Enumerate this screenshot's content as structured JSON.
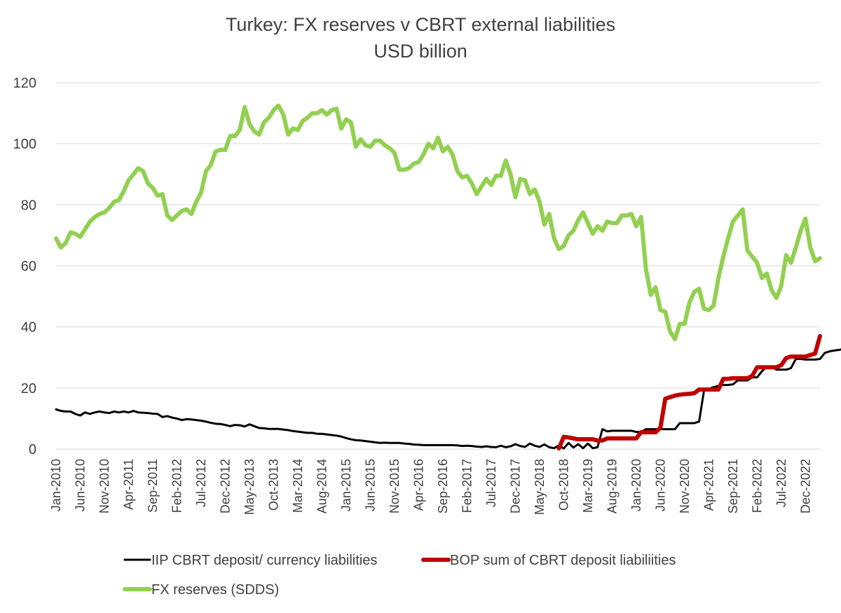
{
  "chart_data": {
    "type": "line",
    "title": "Turkey: FX reserves v CBRT external liabilities",
    "subtitle": "USD billion",
    "ylim": [
      0,
      120
    ],
    "yticks": [
      0,
      20,
      40,
      60,
      80,
      100,
      120
    ],
    "x_start": "Jan-2010",
    "x_count": 159,
    "xtick_labels": [
      "Jan-2010",
      "Jun-2010",
      "Nov-2010",
      "Apr-2011",
      "Sep-2011",
      "Feb-2012",
      "Jul-2012",
      "Dec-2012",
      "May-2013",
      "Oct-2013",
      "Mar-2014",
      "Aug-2014",
      "Jan-2015",
      "Jun-2015",
      "Nov-2015",
      "Apr-2016",
      "Sep-2016",
      "Feb-2017",
      "Jul-2017",
      "Dec-2017",
      "May-2018",
      "Oct-2018",
      "Mar-2019",
      "Aug-2019",
      "Jan-2020",
      "Jun-2020",
      "Nov-2020",
      "Apr-2021",
      "Sep-2021",
      "Feb-2022",
      "Jul-2022",
      "Dec-2022"
    ],
    "grid": true,
    "legend_position": "bottom",
    "series": [
      {
        "name": "IIP CBRT deposit/ currency liabilities",
        "color": "#000000",
        "start_index": 0,
        "values": [
          13.0,
          12.5,
          12.3,
          12.3,
          11.5,
          11.0,
          12.0,
          11.5,
          12.0,
          12.3,
          12.0,
          11.8,
          12.3,
          12.0,
          12.3,
          12.0,
          12.5,
          12.0,
          11.9,
          11.8,
          11.6,
          11.5,
          10.5,
          10.8,
          10.3,
          10.0,
          9.5,
          9.8,
          9.7,
          9.5,
          9.3,
          9.0,
          8.6,
          8.3,
          8.2,
          7.9,
          7.5,
          7.9,
          7.8,
          7.4,
          8.1,
          7.5,
          6.9,
          6.8,
          6.6,
          6.6,
          6.6,
          6.4,
          6.2,
          5.9,
          5.7,
          5.5,
          5.3,
          5.3,
          5.0,
          5.0,
          4.8,
          4.6,
          4.4,
          4.1,
          3.6,
          3.2,
          2.9,
          2.8,
          2.6,
          2.4,
          2.2,
          2.0,
          2.1,
          2.0,
          2.0,
          2.0,
          1.8,
          1.7,
          1.5,
          1.4,
          1.3,
          1.3,
          1.3,
          1.3,
          1.3,
          1.3,
          1.3,
          1.2,
          1.0,
          1.1,
          1.0,
          0.8,
          0.7,
          0.9,
          0.7,
          0.6,
          1.1,
          0.6,
          0.9,
          1.6,
          1.0,
          0.7,
          1.8,
          1.1,
          0.7,
          1.5,
          0.6,
          0.3,
          1.2,
          0.2,
          2.0,
          0.5,
          1.6,
          0.3,
          1.8,
          0.3,
          0.6,
          6.5,
          5.8,
          6.0,
          6.0,
          6.0,
          6.0,
          6.0,
          5.6,
          5.6,
          6.5,
          6.5,
          6.5,
          6.5,
          6.5,
          6.5,
          6.5,
          8.5,
          8.5,
          8.5,
          8.5,
          9.0,
          19.0,
          19.7,
          20.3,
          20.7,
          21.0,
          21.0,
          21.2,
          22.5,
          22.5,
          22.5,
          23.5,
          23.5,
          25.5,
          27.0,
          27.0,
          26.0,
          26.0,
          26.0,
          26.5,
          29.5,
          29.5,
          29.3,
          29.3,
          29.3,
          29.5,
          31.5,
          32.0,
          32.3,
          32.5,
          32.8,
          33.5,
          33.8
        ]
      },
      {
        "name": "BOP sum of CBRT deposit liabiliities",
        "color": "#c00000",
        "start_index": 104,
        "values": [
          0.2,
          4.0,
          3.8,
          3.5,
          3.2,
          3.2,
          3.2,
          3.2,
          2.8,
          2.8,
          3.5,
          3.5,
          3.5,
          3.5,
          3.5,
          3.5,
          3.5,
          5.5,
          5.5,
          5.5,
          5.5,
          7.0,
          16.5,
          17.0,
          17.5,
          17.8,
          18.0,
          18.1,
          18.3,
          19.5,
          19.5,
          19.5,
          19.5,
          19.5,
          23.0,
          23.0,
          23.2,
          23.2,
          23.2,
          23.2,
          24.0,
          26.8,
          26.8,
          26.8,
          26.8,
          26.8,
          27.5,
          29.8,
          30.3,
          30.3,
          30.3,
          30.3,
          30.8,
          31.3,
          37.0
        ]
      },
      {
        "name": "FX reserves (SDDS)",
        "color": "#92d050",
        "start_index": 0,
        "values": [
          69.0,
          66.0,
          67.5,
          71.0,
          70.5,
          69.5,
          72.0,
          74.5,
          76.0,
          77.0,
          77.5,
          79.0,
          81.0,
          81.5,
          84.5,
          88.0,
          90.0,
          92.0,
          91.0,
          87.0,
          85.5,
          83.0,
          83.5,
          76.5,
          75.0,
          76.5,
          78.0,
          78.5,
          77.0,
          81.0,
          84.0,
          91.0,
          93.0,
          97.5,
          98.0,
          98.0,
          102.5,
          102.5,
          104.5,
          112.0,
          106.5,
          104.0,
          103.0,
          107.0,
          108.5,
          111.0,
          112.5,
          109.5,
          103.0,
          105.0,
          104.5,
          107.5,
          108.5,
          110.0,
          110.0,
          111.0,
          109.5,
          111.0,
          111.5,
          105.0,
          108.0,
          107.0,
          99.0,
          101.5,
          99.5,
          99.0,
          101.0,
          101.0,
          99.5,
          98.5,
          97.0,
          91.5,
          91.5,
          92.0,
          93.5,
          94.0,
          96.5,
          100.0,
          98.5,
          102.0,
          97.5,
          99.0,
          96.5,
          91.0,
          89.0,
          89.5,
          87.0,
          83.5,
          86.0,
          88.5,
          86.5,
          89.5,
          89.5,
          94.5,
          90.0,
          82.5,
          88.5,
          88.0,
          83.5,
          85.0,
          81.0,
          73.5,
          77.0,
          69.0,
          65.5,
          66.5,
          70.0,
          71.5,
          75.0,
          77.5,
          74.0,
          70.5,
          73.0,
          71.5,
          74.5,
          74.0,
          74.0,
          76.5,
          76.5,
          77.0,
          73.0,
          76.0,
          59.0,
          50.5,
          53.0,
          45.5,
          45.0,
          38.5,
          36.0,
          41.0,
          41.0,
          48.0,
          51.5,
          52.5,
          46.0,
          45.5,
          47.0,
          56.0,
          63.0,
          69.0,
          74.5,
          76.5,
          78.5,
          65.0,
          63.0,
          61.0,
          56.0,
          57.5,
          52.0,
          49.5,
          53.5,
          63.5,
          61.0,
          66.0,
          71.5,
          75.5,
          66.0,
          61.5,
          62.5
        ]
      }
    ]
  }
}
